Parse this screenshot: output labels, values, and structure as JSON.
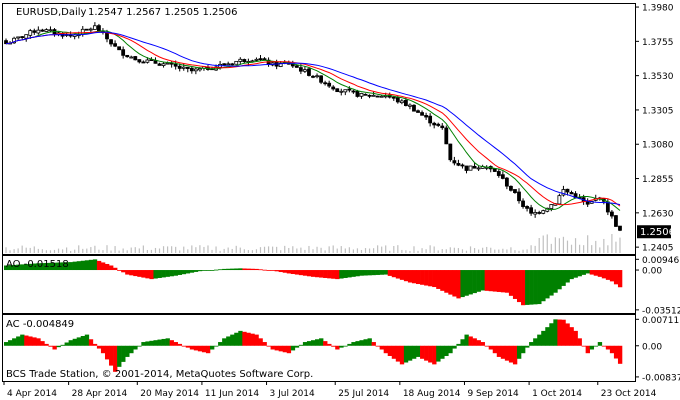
{
  "window": {
    "symbol_label": "EURUSD,Daily",
    "ohlc_label": "1.2547 1.2567 1.2505 1.2506",
    "copyright": "BCS Trade Station, © 2001-2014, MetaQuotes Software Corp."
  },
  "colors": {
    "candle": "#000000",
    "ma_fast": "#008000",
    "ma_mid": "#ff0000",
    "ma_slow": "#0000ff",
    "osc_up": "#008000",
    "osc_down": "#ff0000",
    "volume": "#c0c0c0",
    "price_box": "#000000"
  },
  "chart_data": [
    {
      "type": "candlestick",
      "name": "main",
      "symbol": "EURUSD",
      "timeframe": "Daily",
      "last_price_label": "1.2506",
      "ylim": [
        1.236,
        1.4
      ],
      "y_ticks": [
        "1.3980",
        "1.3755",
        "1.3530",
        "1.3305",
        "1.3080",
        "1.2855",
        "1.2630",
        "1.2405"
      ],
      "x_ticks": [
        "4 Apr 2014",
        "28 Apr 2014",
        "20 May 2014",
        "11 Jun 2014",
        "3 Jul 2014",
        "25 Jul 2014",
        "18 Aug 2014",
        "9 Sep 2014",
        "1 Oct 2014",
        "23 Oct 2014"
      ],
      "close_anchors": [
        [
          0,
          1.374
        ],
        [
          8,
          1.3835
        ],
        [
          16,
          1.379
        ],
        [
          22,
          1.385
        ],
        [
          24,
          1.38
        ],
        [
          28,
          1.369
        ],
        [
          32,
          1.364
        ],
        [
          40,
          1.36
        ],
        [
          46,
          1.356
        ],
        [
          52,
          1.359
        ],
        [
          58,
          1.363
        ],
        [
          62,
          1.3645
        ],
        [
          66,
          1.36
        ],
        [
          70,
          1.361
        ],
        [
          76,
          1.353
        ],
        [
          82,
          1.344
        ],
        [
          88,
          1.34
        ],
        [
          94,
          1.34
        ],
        [
          100,
          1.333
        ],
        [
          104,
          1.325
        ],
        [
          108,
          1.318
        ],
        [
          110,
          1.298
        ],
        [
          114,
          1.292
        ],
        [
          118,
          1.2945
        ],
        [
          122,
          1.288
        ],
        [
          126,
          1.275
        ],
        [
          128,
          1.268
        ],
        [
          130,
          1.262
        ],
        [
          132,
          1.264
        ],
        [
          136,
          1.27
        ],
        [
          138,
          1.278
        ],
        [
          141,
          1.274
        ],
        [
          144,
          1.268
        ],
        [
          147,
          1.274
        ],
        [
          150,
          1.26
        ],
        [
          152,
          1.2506
        ]
      ]
    },
    {
      "type": "histogram",
      "name": "AO",
      "label": "AO -0.01518",
      "last_value": -0.01518,
      "ylim": [
        -0.037,
        0.0115
      ],
      "y_ticks": [
        "0.00946",
        "0.00",
        "-0.03512"
      ],
      "anchors": [
        [
          0,
          0.004
        ],
        [
          8,
          0.006
        ],
        [
          16,
          0.007
        ],
        [
          22,
          0.0094
        ],
        [
          26,
          0.004
        ],
        [
          30,
          -0.004
        ],
        [
          36,
          -0.008
        ],
        [
          42,
          -0.005
        ],
        [
          48,
          -0.001
        ],
        [
          54,
          0.001
        ],
        [
          58,
          0.0015
        ],
        [
          62,
          0.001
        ],
        [
          66,
          -0.0005
        ],
        [
          70,
          -0.003
        ],
        [
          76,
          -0.006
        ],
        [
          82,
          -0.008
        ],
        [
          88,
          -0.005
        ],
        [
          94,
          -0.004
        ],
        [
          100,
          -0.011
        ],
        [
          106,
          -0.015
        ],
        [
          112,
          -0.025
        ],
        [
          118,
          -0.018
        ],
        [
          124,
          -0.02
        ],
        [
          128,
          -0.031
        ],
        [
          132,
          -0.03
        ],
        [
          136,
          -0.02
        ],
        [
          140,
          -0.008
        ],
        [
          144,
          -0.003
        ],
        [
          147,
          -0.006
        ],
        [
          150,
          -0.01
        ],
        [
          152,
          -0.01518
        ]
      ]
    },
    {
      "type": "histogram",
      "name": "AC",
      "label": "AC -0.004849",
      "last_value": -0.004849,
      "ylim": [
        -0.0092,
        0.008
      ],
      "y_ticks": [
        "0.00711",
        "0.00",
        "-0.00837"
      ],
      "anchors": [
        [
          0,
          0.001
        ],
        [
          4,
          0.003
        ],
        [
          8,
          0.002
        ],
        [
          12,
          -0.001
        ],
        [
          16,
          0.0015
        ],
        [
          20,
          0.003
        ],
        [
          24,
          -0.002
        ],
        [
          27,
          -0.007
        ],
        [
          30,
          -0.003
        ],
        [
          34,
          0.001
        ],
        [
          40,
          0.002
        ],
        [
          46,
          -0.001
        ],
        [
          50,
          -0.002
        ],
        [
          54,
          0.002
        ],
        [
          58,
          0.004
        ],
        [
          62,
          0.003
        ],
        [
          66,
          -0.001
        ],
        [
          70,
          -0.002
        ],
        [
          74,
          0.001
        ],
        [
          78,
          0.002
        ],
        [
          82,
          -0.001
        ],
        [
          86,
          0.001
        ],
        [
          90,
          0.002
        ],
        [
          94,
          -0.002
        ],
        [
          98,
          -0.005
        ],
        [
          102,
          -0.003
        ],
        [
          106,
          -0.005
        ],
        [
          110,
          -0.002
        ],
        [
          114,
          0.003
        ],
        [
          118,
          0.001
        ],
        [
          122,
          -0.003
        ],
        [
          126,
          -0.005
        ],
        [
          130,
          0.001
        ],
        [
          134,
          0.005
        ],
        [
          136,
          0.0071
        ],
        [
          138,
          0.007
        ],
        [
          141,
          0.004
        ],
        [
          144,
          -0.002
        ],
        [
          147,
          0.001
        ],
        [
          150,
          -0.002
        ],
        [
          152,
          -0.004849
        ]
      ]
    }
  ]
}
